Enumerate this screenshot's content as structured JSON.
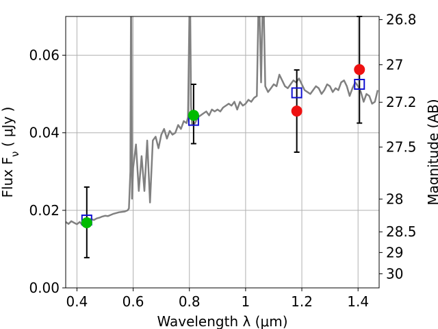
{
  "chart_data": {
    "type": "scatter",
    "xlabel": "Wavelength  λ (μm)",
    "ylabel": "Flux  F_ν  ( μJy )",
    "ylabel_right": "Magnitude (AB)",
    "xlim": [
      0.36,
      1.475
    ],
    "ylim": [
      0.0,
      0.07
    ],
    "grid": true,
    "x_ticks": [
      0.4,
      0.6,
      0.8,
      1.0,
      1.2,
      1.4
    ],
    "x_tick_labels": [
      "0.4",
      "0.6",
      "0.8",
      "1",
      "1.2",
      "1.4"
    ],
    "y_ticks": [
      0.0,
      0.02,
      0.04,
      0.06
    ],
    "y_tick_labels": [
      "0.00",
      "0.02",
      "0.04",
      "0.06"
    ],
    "right_ticks": [
      {
        "label": "26.8",
        "mag": 26.8
      },
      {
        "label": "27",
        "mag": 27.0
      },
      {
        "label": "27.2",
        "mag": 27.2
      },
      {
        "label": "27.5",
        "mag": 27.5
      },
      {
        "label": "28",
        "mag": 28.0
      },
      {
        "label": "28.5",
        "mag": 28.5
      },
      {
        "label": "29",
        "mag": 29.0
      },
      {
        "label": "30",
        "mag": 30.0
      }
    ],
    "spectrum": {
      "color": "#808080",
      "x": [
        0.36,
        0.37,
        0.38,
        0.39,
        0.4,
        0.41,
        0.42,
        0.43,
        0.44,
        0.45,
        0.46,
        0.47,
        0.48,
        0.49,
        0.5,
        0.51,
        0.52,
        0.53,
        0.54,
        0.55,
        0.56,
        0.57,
        0.58,
        0.585,
        0.59,
        0.592,
        0.594,
        0.596,
        0.6,
        0.61,
        0.62,
        0.63,
        0.64,
        0.65,
        0.66,
        0.67,
        0.68,
        0.69,
        0.7,
        0.71,
        0.72,
        0.73,
        0.74,
        0.75,
        0.76,
        0.77,
        0.78,
        0.79,
        0.795,
        0.8,
        0.803,
        0.806,
        0.81,
        0.82,
        0.83,
        0.84,
        0.85,
        0.86,
        0.87,
        0.88,
        0.89,
        0.9,
        0.91,
        0.92,
        0.93,
        0.94,
        0.95,
        0.96,
        0.97,
        0.98,
        0.99,
        1.0,
        1.01,
        1.02,
        1.03,
        1.04,
        1.045,
        1.05,
        1.055,
        1.06,
        1.065,
        1.07,
        1.08,
        1.09,
        1.1,
        1.11,
        1.12,
        1.13,
        1.14,
        1.15,
        1.16,
        1.17,
        1.18,
        1.19,
        1.2,
        1.21,
        1.22,
        1.23,
        1.24,
        1.25,
        1.26,
        1.27,
        1.28,
        1.29,
        1.3,
        1.31,
        1.32,
        1.33,
        1.34,
        1.35,
        1.36,
        1.37,
        1.38,
        1.39,
        1.4,
        1.41,
        1.42,
        1.43,
        1.44,
        1.45,
        1.46,
        1.47
      ],
      "y": [
        0.017,
        0.0165,
        0.0172,
        0.0168,
        0.0164,
        0.017,
        0.0162,
        0.0166,
        0.0172,
        0.0178,
        0.0175,
        0.0179,
        0.0181,
        0.0184,
        0.0186,
        0.0185,
        0.0188,
        0.0191,
        0.0193,
        0.0195,
        0.0196,
        0.0197,
        0.02,
        0.0205,
        0.03,
        0.07,
        0.07,
        0.023,
        0.031,
        0.037,
        0.025,
        0.034,
        0.025,
        0.038,
        0.022,
        0.038,
        0.039,
        0.036,
        0.0395,
        0.041,
        0.0385,
        0.0405,
        0.0395,
        0.04,
        0.042,
        0.041,
        0.043,
        0.0425,
        0.044,
        0.07,
        0.07,
        0.047,
        0.042,
        0.0425,
        0.044,
        0.0445,
        0.045,
        0.0455,
        0.0445,
        0.046,
        0.0455,
        0.046,
        0.0455,
        0.0465,
        0.047,
        0.0475,
        0.047,
        0.048,
        0.046,
        0.048,
        0.047,
        0.0475,
        0.0485,
        0.048,
        0.049,
        0.0495,
        0.07,
        0.07,
        0.053,
        0.07,
        0.07,
        0.052,
        0.0505,
        0.0515,
        0.0525,
        0.052,
        0.055,
        0.0535,
        0.052,
        0.0515,
        0.0525,
        0.0535,
        0.053,
        0.054,
        0.0525,
        0.051,
        0.0505,
        0.05,
        0.051,
        0.052,
        0.0515,
        0.05,
        0.051,
        0.0525,
        0.052,
        0.0505,
        0.0515,
        0.051,
        0.053,
        0.0535,
        0.052,
        0.0495,
        0.0515,
        0.053,
        0.052,
        0.0505,
        0.048,
        0.05,
        0.0495,
        0.0475,
        0.048,
        0.051
      ]
    },
    "model_points": {
      "color": "#1010d0",
      "x": [
        0.435,
        0.815,
        1.182,
        1.405
      ],
      "y": [
        0.0175,
        0.0432,
        0.0503,
        0.0525
      ]
    },
    "observed_points": [
      {
        "x": 0.435,
        "y": 0.0168,
        "yerr_low": 0.0078,
        "yerr_high": 0.026,
        "color": "#00bb00"
      },
      {
        "x": 0.815,
        "y": 0.0445,
        "yerr_low": 0.0372,
        "yerr_high": 0.0525,
        "color": "#00bb00"
      },
      {
        "x": 1.182,
        "y": 0.0456,
        "yerr_low": 0.035,
        "yerr_high": 0.0562,
        "color": "#ee1111"
      },
      {
        "x": 1.405,
        "y": 0.0563,
        "yerr_low": 0.0425,
        "yerr_high": 0.07,
        "color": "#ee1111"
      }
    ],
    "colors": {
      "grid": "#b0b0b0",
      "axes": "#000000",
      "errorbar": "#000000"
    }
  }
}
